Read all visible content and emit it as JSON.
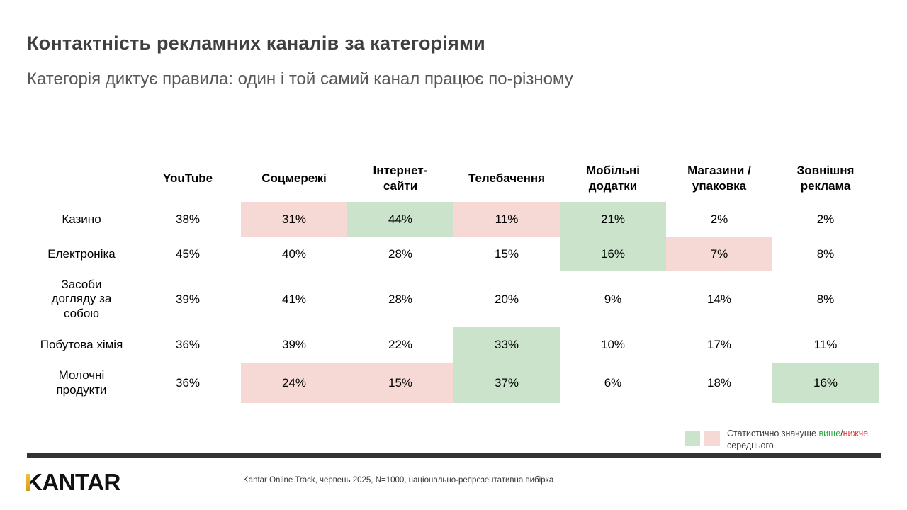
{
  "header": {
    "title": "Контактність рекламних каналів за категоріями",
    "subtitle": "Категорія диктує правила: один і той самий канал працює по-різному"
  },
  "chart_data": {
    "type": "table",
    "title": "Контактність рекламних каналів за категоріями",
    "subtitle": "Категорія диктує правила: один і той самий канал працює по-різному",
    "columns": [
      "YouTube",
      "Соцмережі",
      "Інтернет-сайти",
      "Телебачення",
      "Мобільні додатки",
      "Магазини / упаковка",
      "Зовнішня реклама"
    ],
    "rows": [
      "Казино",
      "Електроніка",
      "Засоби догляду за собою",
      "Побутова хімія",
      "Молочні продукти"
    ],
    "value_unit": "%",
    "values_pct": [
      [
        38,
        31,
        44,
        11,
        21,
        2,
        2
      ],
      [
        45,
        40,
        28,
        15,
        16,
        7,
        8
      ],
      [
        39,
        41,
        28,
        20,
        9,
        14,
        8
      ],
      [
        36,
        39,
        22,
        33,
        10,
        17,
        11
      ],
      [
        36,
        24,
        15,
        37,
        6,
        18,
        16
      ]
    ],
    "significance": [
      [
        "",
        "lower",
        "higher",
        "lower",
        "higher",
        "",
        ""
      ],
      [
        "",
        "",
        "",
        "",
        "higher",
        "lower",
        ""
      ],
      [
        "",
        "",
        "",
        "",
        "",
        "",
        ""
      ],
      [
        "",
        "",
        "",
        "higher",
        "",
        "",
        ""
      ],
      [
        "",
        "lower",
        "lower",
        "higher",
        "",
        "",
        "higher"
      ]
    ],
    "legend_note": "Статистично значуще вище/нижче середнього"
  },
  "legend": {
    "prefix": "Статистично значуще ",
    "higher_word": "вище",
    "separator": "/",
    "lower_word": "нижче",
    "suffix": " середнього"
  },
  "footer": {
    "logo_text": "KANTAR",
    "source": "Kantar Online Track, червень 2025, N=1000, національно-репрезентативна вибірка"
  },
  "colors": {
    "significant_higher_bg": "#cbe3ca",
    "significant_lower_bg": "#f6d8d4",
    "higher_text": "#2faa4a",
    "lower_text": "#e0342e",
    "title_text": "#3f3f3e",
    "subtitle_text": "#575756",
    "divider": "#333333",
    "logo_gold": "#d99a1b"
  }
}
